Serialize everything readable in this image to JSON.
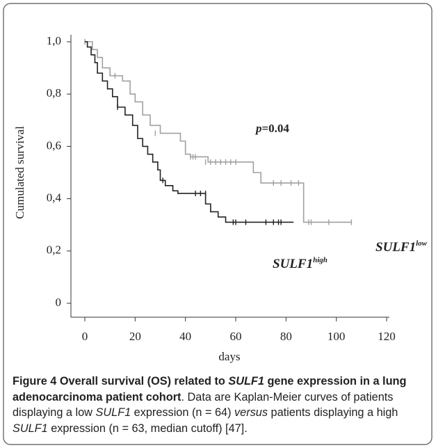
{
  "chart_data": {
    "type": "line",
    "step": true,
    "y_label": "Cumulated survival",
    "x_label": "days",
    "annotation": {
      "italic": "p",
      "rest": "=0.04"
    },
    "xlim": [
      0,
      120
    ],
    "xticks": [
      0,
      20,
      40,
      60,
      80,
      100,
      120
    ],
    "ylim": [
      0,
      1
    ],
    "yticks": [
      0,
      {
        "value": 0.2,
        "label": "0,2"
      },
      {
        "value": 0.4,
        "label": "0,4"
      },
      {
        "value": 0.6,
        "label": "0,6"
      },
      {
        "value": 0.8,
        "label": "0,8"
      },
      {
        "value": 1,
        "label": "1,0"
      }
    ],
    "series": [
      {
        "name": "SULF1",
        "superscript": "low",
        "color": "#a0a0a0",
        "x": [
          0,
          3,
          3,
          5,
          5,
          7,
          7,
          10,
          10,
          15,
          15,
          18,
          18,
          20,
          20,
          23,
          23,
          26,
          26,
          30,
          30,
          38,
          38,
          40,
          40,
          42,
          42,
          49,
          49,
          67,
          67,
          70,
          70,
          87,
          87,
          106
        ],
        "values": [
          1,
          1,
          0.97,
          0.97,
          0.94,
          0.94,
          0.9,
          0.9,
          0.87,
          0.87,
          0.85,
          0.85,
          0.8,
          0.8,
          0.77,
          0.77,
          0.72,
          0.72,
          0.68,
          0.68,
          0.65,
          0.65,
          0.62,
          0.62,
          0.57,
          0.57,
          0.56,
          0.56,
          0.54,
          0.54,
          0.5,
          0.5,
          0.46,
          0.46,
          0.31,
          0.31
        ],
        "censored_x": [
          0,
          12,
          28,
          42,
          43,
          44,
          48,
          50,
          52,
          54,
          56,
          58,
          60,
          75,
          78,
          82,
          85,
          89,
          90,
          97,
          106
        ],
        "censored_values": [
          1,
          0.87,
          0.65,
          0.56,
          0.56,
          0.56,
          0.54,
          0.54,
          0.54,
          0.54,
          0.54,
          0.54,
          0.54,
          0.46,
          0.46,
          0.46,
          0.46,
          0.31,
          0.31,
          0.31,
          0.31
        ]
      },
      {
        "name": "SULF1",
        "superscript": "high",
        "color": "#222222",
        "x": [
          0,
          1,
          1,
          2.5,
          2.5,
          4,
          4,
          5,
          5,
          7,
          7,
          9,
          9,
          11,
          11,
          13,
          13,
          16,
          16,
          19,
          19,
          21,
          21,
          23,
          23,
          25,
          25,
          27,
          27,
          29,
          29,
          30,
          30,
          32,
          32,
          35,
          35,
          37,
          37,
          48,
          48,
          50,
          50,
          53,
          53,
          56,
          56,
          83
        ],
        "values": [
          1,
          1,
          0.98,
          0.98,
          0.95,
          0.95,
          0.92,
          0.92,
          0.88,
          0.88,
          0.85,
          0.85,
          0.82,
          0.82,
          0.79,
          0.79,
          0.75,
          0.75,
          0.72,
          0.72,
          0.68,
          0.68,
          0.63,
          0.63,
          0.6,
          0.6,
          0.57,
          0.57,
          0.54,
          0.54,
          0.51,
          0.51,
          0.47,
          0.47,
          0.45,
          0.45,
          0.43,
          0.43,
          0.42,
          0.42,
          0.38,
          0.38,
          0.35,
          0.35,
          0.33,
          0.33,
          0.31,
          0.31
        ],
        "censored_x": [
          13,
          31,
          44,
          46,
          48,
          59,
          60,
          64,
          72,
          75,
          77,
          78
        ],
        "censored_values": [
          0.75,
          0.47,
          0.42,
          0.42,
          0.42,
          0.31,
          0.31,
          0.31,
          0.31,
          0.31,
          0.31,
          0.31
        ]
      }
    ]
  },
  "caption": {
    "runs": [
      {
        "text": "Figure 4 Overall survival (OS) related to ",
        "style": "bold"
      },
      {
        "text": "SULF1",
        "style": "bold-italic"
      },
      {
        "text": " gene expression in a lung adenocarcinoma patient cohort",
        "style": "bold"
      },
      {
        "text": ". Data are Kaplan-Meier curves of patients displaying a low ",
        "style": "normal"
      },
      {
        "text": "SULF1",
        "style": "italic"
      },
      {
        "text": " expression (n = 64) ",
        "style": "normal"
      },
      {
        "text": "versus",
        "style": "italic"
      },
      {
        "text": " patients displaying a high ",
        "style": "normal"
      },
      {
        "text": "SULF1",
        "style": "italic"
      },
      {
        "text": " expression (n = 63, median cutoff) [47].",
        "style": "normal"
      }
    ]
  }
}
